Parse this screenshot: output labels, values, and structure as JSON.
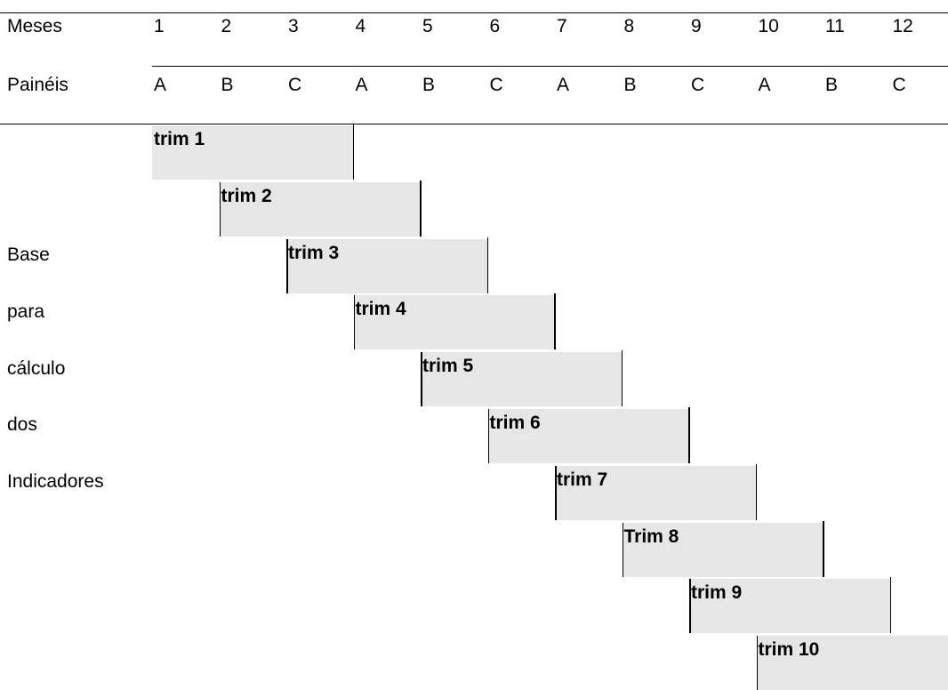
{
  "header": {
    "months_label": "Meses",
    "panels_label": "Painéis",
    "months": [
      "1",
      "2",
      "3",
      "4",
      "5",
      "6",
      "7",
      "8",
      "9",
      "10",
      "11",
      "12"
    ],
    "panels": [
      "A",
      "B",
      "C",
      "A",
      "B",
      "C",
      "A",
      "B",
      "C",
      "A",
      "B",
      "C"
    ]
  },
  "side_labels": [
    "Base",
    "para",
    "cálculo",
    "dos",
    "Indicadores"
  ],
  "quarters": [
    {
      "label": "trim 1",
      "start_month": 1,
      "end_month": 3
    },
    {
      "label": "trim 2",
      "start_month": 2,
      "end_month": 4
    },
    {
      "label": "trim 3",
      "start_month": 3,
      "end_month": 5
    },
    {
      "label": "trim 4",
      "start_month": 4,
      "end_month": 6
    },
    {
      "label": "trim 5",
      "start_month": 5,
      "end_month": 7
    },
    {
      "label": "trim 6",
      "start_month": 6,
      "end_month": 8
    },
    {
      "label": "trim 7",
      "start_month": 7,
      "end_month": 9
    },
    {
      "label": "Trim 8",
      "start_month": 8,
      "end_month": 10
    },
    {
      "label": "trim 9",
      "start_month": 9,
      "end_month": 11
    },
    {
      "label": "trim 10",
      "start_month": 10,
      "end_month": 12
    }
  ],
  "colors": {
    "bar_fill": "#e6e6e6",
    "line": "#000000"
  }
}
